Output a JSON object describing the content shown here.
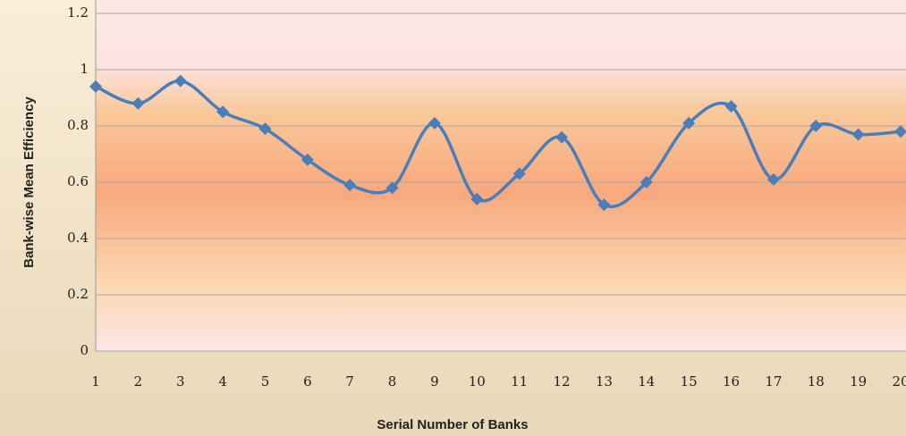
{
  "chart_data": {
    "type": "line",
    "x_label": "Serial Number of Banks",
    "y_label": "Bank-wise Mean Efficiency",
    "categories": [
      "1",
      "2",
      "3",
      "4",
      "5",
      "6",
      "7",
      "8",
      "9",
      "10",
      "11",
      "12",
      "13",
      "14",
      "15",
      "16",
      "17",
      "18",
      "19",
      "20"
    ],
    "values": [
      0.94,
      0.88,
      0.96,
      0.85,
      0.79,
      0.68,
      0.59,
      0.58,
      0.81,
      0.54,
      0.63,
      0.76,
      0.52,
      0.6,
      0.81,
      0.87,
      0.61,
      0.8,
      0.77,
      0.78
    ],
    "color": "#4a7ebb",
    "ylim": [
      0,
      1.2
    ],
    "yticks": [
      0,
      0.2,
      0.4,
      0.6,
      0.8,
      1,
      1.2
    ],
    "grid": true,
    "smooth": true
  }
}
